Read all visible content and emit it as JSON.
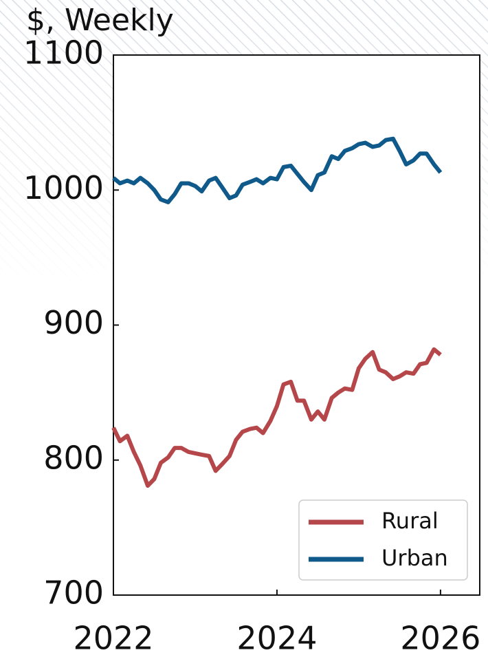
{
  "chart_data": {
    "type": "line",
    "title": "$, Weekly",
    "x": [
      2022,
      2022.08,
      2022.17,
      2022.25,
      2022.33,
      2022.42,
      2022.5,
      2022.58,
      2022.67,
      2022.75,
      2022.83,
      2022.92,
      2023,
      2023.08,
      2023.17,
      2023.25,
      2023.33,
      2023.42,
      2023.5,
      2023.58,
      2023.67,
      2023.75,
      2023.83,
      2023.92,
      2024,
      2024.08,
      2024.17,
      2024.25,
      2024.33,
      2024.42,
      2024.5,
      2024.58,
      2024.67,
      2024.75,
      2024.83,
      2024.92,
      2025,
      2025.08,
      2025.17,
      2025.25,
      2025.33,
      2025.42,
      2025.5,
      2025.58,
      2025.67,
      2025.75,
      2025.83,
      2025.92,
      2026
    ],
    "series": [
      {
        "name": "Rural",
        "color": "#b5474b",
        "values": [
          824,
          814,
          818,
          806,
          796,
          781,
          786,
          798,
          802,
          809,
          809,
          806,
          805,
          804,
          803,
          792,
          797,
          803,
          815,
          821,
          823,
          824,
          820,
          829,
          840,
          856,
          858,
          844,
          844,
          830,
          836,
          830,
          846,
          850,
          853,
          852,
          868,
          875,
          880,
          867,
          865,
          860,
          862,
          865,
          864,
          871,
          872,
          882,
          878
        ]
      },
      {
        "name": "Urban",
        "color": "#0f5a8a",
        "values": [
          1009,
          1005,
          1007,
          1005,
          1009,
          1005,
          1000,
          993,
          991,
          997,
          1005,
          1005,
          1003,
          999,
          1007,
          1009,
          1002,
          994,
          996,
          1004,
          1006,
          1008,
          1005,
          1009,
          1008,
          1017,
          1018,
          1012,
          1006,
          1000,
          1011,
          1013,
          1025,
          1023,
          1029,
          1031,
          1034,
          1035,
          1032,
          1033,
          1037,
          1038,
          1029,
          1019,
          1022,
          1027,
          1027,
          1019,
          1013
        ]
      }
    ],
    "xlim": [
      2022,
      2026.48
    ],
    "xticks": [
      2022,
      2024,
      2026
    ],
    "ylim": [
      700,
      1100
    ],
    "yticks": [
      700,
      800,
      900,
      1000,
      1100
    ],
    "legend": "lower right"
  }
}
